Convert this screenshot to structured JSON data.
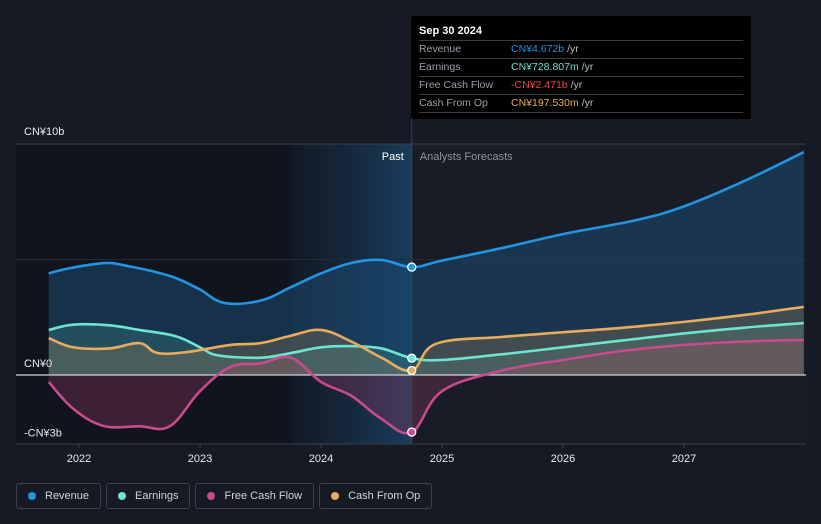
{
  "chart_data": {
    "type": "area",
    "title": "",
    "xlabel": "",
    "ylabel": "",
    "ylim": [
      -3,
      10
    ],
    "xlim": [
      2021.6,
      2028.0
    ],
    "y_ticks": [
      {
        "value": 10,
        "label": "CN¥10b"
      },
      {
        "value": 0,
        "label": "CN¥0"
      },
      {
        "value": -3,
        "label": "-CN¥3b"
      }
    ],
    "x_ticks": [
      {
        "value": 2022,
        "label": "2022"
      },
      {
        "value": 2023,
        "label": "2023"
      },
      {
        "value": 2024,
        "label": "2024"
      },
      {
        "value": 2025,
        "label": "2025"
      },
      {
        "value": 2026,
        "label": "2026"
      },
      {
        "value": 2027,
        "label": "2027"
      }
    ],
    "grid": true,
    "legend_position": "bottom-left",
    "divider_x": 2024.75,
    "highlight_range": [
      2023.75,
      2024.75
    ],
    "region_labels": {
      "past": "Past",
      "forecast": "Analysts Forecasts"
    },
    "series": [
      {
        "name": "Revenue",
        "color": "#2394df",
        "points": [
          [
            2021.75,
            4.4
          ],
          [
            2021.9,
            4.6
          ],
          [
            2022.1,
            4.78
          ],
          [
            2022.25,
            4.85
          ],
          [
            2022.4,
            4.72
          ],
          [
            2022.6,
            4.5
          ],
          [
            2022.8,
            4.2
          ],
          [
            2023.0,
            3.7
          ],
          [
            2023.2,
            3.12
          ],
          [
            2023.5,
            3.22
          ],
          [
            2023.75,
            3.8
          ],
          [
            2024.0,
            4.4
          ],
          [
            2024.25,
            4.85
          ],
          [
            2024.5,
            4.98
          ],
          [
            2024.75,
            4.672
          ],
          [
            2025.0,
            4.95
          ],
          [
            2025.5,
            5.5
          ],
          [
            2026.0,
            6.1
          ],
          [
            2026.6,
            6.7
          ],
          [
            2027.0,
            7.3
          ],
          [
            2027.5,
            8.4
          ],
          [
            2027.99,
            9.65
          ]
        ]
      },
      {
        "name": "Earnings",
        "color": "#6de3d0",
        "points": [
          [
            2021.75,
            1.95
          ],
          [
            2021.95,
            2.18
          ],
          [
            2022.25,
            2.15
          ],
          [
            2022.5,
            1.95
          ],
          [
            2022.8,
            1.68
          ],
          [
            2023.0,
            1.2
          ],
          [
            2023.15,
            0.85
          ],
          [
            2023.5,
            0.75
          ],
          [
            2023.75,
            0.95
          ],
          [
            2024.0,
            1.2
          ],
          [
            2024.25,
            1.25
          ],
          [
            2024.5,
            1.15
          ],
          [
            2024.75,
            0.729
          ],
          [
            2025.0,
            0.65
          ],
          [
            2025.5,
            0.9
          ],
          [
            2026.0,
            1.2
          ],
          [
            2026.5,
            1.5
          ],
          [
            2027.0,
            1.8
          ],
          [
            2027.5,
            2.05
          ],
          [
            2027.99,
            2.25
          ]
        ]
      },
      {
        "name": "Free Cash Flow",
        "color": "#c94b8d",
        "points": [
          [
            2021.75,
            -0.3
          ],
          [
            2021.95,
            -1.45
          ],
          [
            2022.2,
            -2.2
          ],
          [
            2022.5,
            -2.22
          ],
          [
            2022.75,
            -2.22
          ],
          [
            2023.0,
            -0.7
          ],
          [
            2023.25,
            0.35
          ],
          [
            2023.5,
            0.5
          ],
          [
            2023.75,
            0.75
          ],
          [
            2024.0,
            -0.3
          ],
          [
            2024.25,
            -0.9
          ],
          [
            2024.5,
            -1.9
          ],
          [
            2024.75,
            -2.471
          ],
          [
            2025.0,
            -0.7
          ],
          [
            2025.5,
            0.2
          ],
          [
            2026.0,
            0.65
          ],
          [
            2026.5,
            1.05
          ],
          [
            2027.0,
            1.3
          ],
          [
            2027.5,
            1.45
          ],
          [
            2027.99,
            1.52
          ]
        ]
      },
      {
        "name": "Cash From Op",
        "color": "#e8ac5b",
        "points": [
          [
            2021.75,
            1.6
          ],
          [
            2021.95,
            1.2
          ],
          [
            2022.25,
            1.15
          ],
          [
            2022.5,
            1.38
          ],
          [
            2022.65,
            0.95
          ],
          [
            2022.9,
            1.0
          ],
          [
            2023.25,
            1.3
          ],
          [
            2023.5,
            1.38
          ],
          [
            2023.75,
            1.7
          ],
          [
            2024.0,
            1.95
          ],
          [
            2024.25,
            1.45
          ],
          [
            2024.5,
            0.75
          ],
          [
            2024.75,
            0.198
          ],
          [
            2024.95,
            1.35
          ],
          [
            2025.5,
            1.65
          ],
          [
            2026.0,
            1.85
          ],
          [
            2026.5,
            2.05
          ],
          [
            2027.0,
            2.3
          ],
          [
            2027.5,
            2.6
          ],
          [
            2027.99,
            2.95
          ]
        ]
      }
    ]
  },
  "tooltip": {
    "date": "Sep 30 2024",
    "rows": [
      {
        "label": "Revenue",
        "value": "CN¥4.672b",
        "unit": "/yr",
        "color": "#2394df"
      },
      {
        "label": "Earnings",
        "value": "CN¥728.807m",
        "unit": "/yr",
        "color": "#6de3d0"
      },
      {
        "label": "Free Cash Flow",
        "value": "-CN¥2.471b",
        "unit": "/yr",
        "color": "#e8464b"
      },
      {
        "label": "Cash From Op",
        "value": "CN¥197.530m",
        "unit": "/yr",
        "color": "#e8ac5b"
      }
    ]
  },
  "legend": [
    {
      "label": "Revenue",
      "color": "#2394df"
    },
    {
      "label": "Earnings",
      "color": "#6de3d0"
    },
    {
      "label": "Free Cash Flow",
      "color": "#c94b8d"
    },
    {
      "label": "Cash From Op",
      "color": "#e8ac5b"
    }
  ]
}
